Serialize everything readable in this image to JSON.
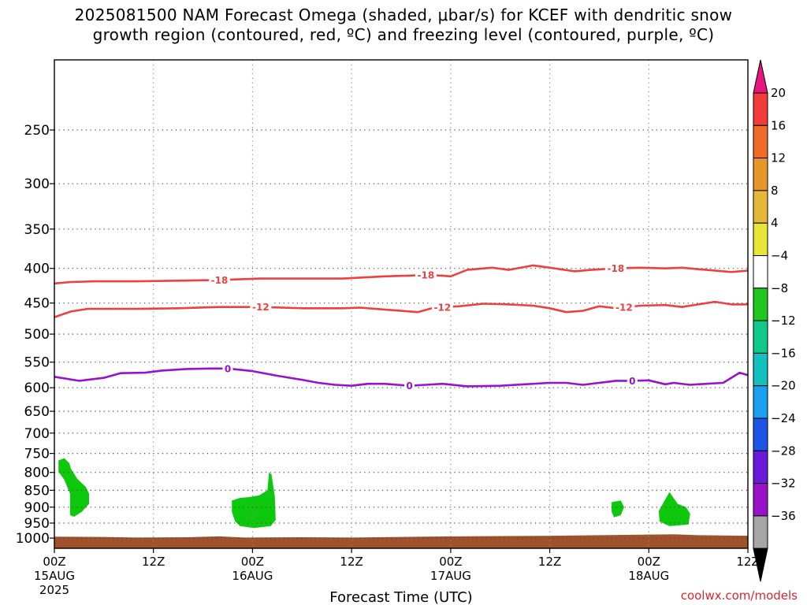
{
  "title": {
    "line1": "2025081500 NAM Forecast Omega (shaded, μbar/s) for KCEF with dendritic snow",
    "line2": "growth region (contoured, red, ºC) and freezing level (contoured, purple, ºC)"
  },
  "credit": "coolwx.com/models",
  "chart_data": {
    "type": "contour",
    "xlabel": "Forecast Time (UTC)",
    "x_axis": {
      "unit": "hours since 2025-08-15 00Z",
      "range": [
        0,
        84
      ],
      "ticks": [
        {
          "h": 0,
          "label": "00Z",
          "sub1": "15AUG",
          "sub2": "2025"
        },
        {
          "h": 12,
          "label": "12Z"
        },
        {
          "h": 24,
          "label": "00Z",
          "sub1": "16AUG"
        },
        {
          "h": 36,
          "label": "12Z"
        },
        {
          "h": 48,
          "label": "00Z",
          "sub1": "17AUG"
        },
        {
          "h": 60,
          "label": "12Z"
        },
        {
          "h": 72,
          "label": "00Z",
          "sub1": "18AUG"
        },
        {
          "h": 84,
          "label": "12Z"
        }
      ]
    },
    "y_axis": {
      "unit": "hPa",
      "scale": "log",
      "reversed": true,
      "range": [
        1035,
        197
      ],
      "ticks": [
        250,
        300,
        350,
        400,
        450,
        500,
        550,
        600,
        650,
        700,
        750,
        800,
        850,
        900,
        950,
        1000
      ]
    },
    "grid": true,
    "colorbar": {
      "label_values": [
        "20",
        "16",
        "12",
        "8",
        "4",
        "−4",
        "−8",
        "−12",
        "−16",
        "−20",
        "−24",
        "−28",
        "−32",
        "−36"
      ],
      "colors": [
        "#e6157f",
        "#f23b3b",
        "#f06b2a",
        "#e8962a",
        "#e5b83a",
        "#e8e53a",
        "#ffffff",
        "#1ec81e",
        "#12c78a",
        "#13c1c1",
        "#1aa0f0",
        "#1f55e6",
        "#6a1ad9",
        "#9a12c8",
        "#a6a6a6",
        "#000000"
      ]
    },
    "series": [
      {
        "name": "-18",
        "color": "#ee4040",
        "label_positions": [
          20,
          45,
          68
        ],
        "points": [
          [
            0,
            421
          ],
          [
            2,
            419
          ],
          [
            5,
            418
          ],
          [
            10,
            418
          ],
          [
            15,
            417
          ],
          [
            20,
            416
          ],
          [
            25,
            414
          ],
          [
            30,
            414
          ],
          [
            35,
            414
          ],
          [
            40,
            411
          ],
          [
            43,
            410
          ],
          [
            45,
            409
          ],
          [
            47,
            410
          ],
          [
            48,
            411
          ],
          [
            50,
            402
          ],
          [
            53,
            399
          ],
          [
            55,
            402
          ],
          [
            58,
            396
          ],
          [
            60,
            399
          ],
          [
            63,
            404
          ],
          [
            65,
            402
          ],
          [
            68,
            400
          ],
          [
            71,
            399
          ],
          [
            74,
            400
          ],
          [
            76,
            399
          ],
          [
            79,
            402
          ],
          [
            82,
            405
          ],
          [
            84,
            403
          ]
        ]
      },
      {
        "name": "-12",
        "color": "#ee4040",
        "label_positions": [
          25,
          47,
          69
        ],
        "points": [
          [
            0,
            472
          ],
          [
            2,
            463
          ],
          [
            4,
            459
          ],
          [
            10,
            459
          ],
          [
            15,
            458
          ],
          [
            20,
            456
          ],
          [
            25,
            456
          ],
          [
            30,
            458
          ],
          [
            35,
            458
          ],
          [
            37,
            457
          ],
          [
            40,
            460
          ],
          [
            42,
            462
          ],
          [
            44,
            464
          ],
          [
            46,
            457
          ],
          [
            49,
            455
          ],
          [
            52,
            451
          ],
          [
            55,
            452
          ],
          [
            58,
            454
          ],
          [
            60,
            458
          ],
          [
            62,
            464
          ],
          [
            64,
            462
          ],
          [
            66,
            455
          ],
          [
            68,
            458
          ],
          [
            71,
            454
          ],
          [
            74,
            453
          ],
          [
            76,
            456
          ],
          [
            78,
            452
          ],
          [
            80,
            448
          ],
          [
            82,
            452
          ],
          [
            84,
            452
          ]
        ]
      },
      {
        "name": "0",
        "color": "#9911cc",
        "label_positions": [
          21,
          43,
          70
        ],
        "points": [
          [
            0,
            578
          ],
          [
            3,
            586
          ],
          [
            6,
            580
          ],
          [
            8,
            571
          ],
          [
            11,
            570
          ],
          [
            13,
            566
          ],
          [
            16,
            563
          ],
          [
            19,
            562
          ],
          [
            21,
            562
          ],
          [
            24,
            567
          ],
          [
            27,
            576
          ],
          [
            30,
            584
          ],
          [
            32,
            590
          ],
          [
            34,
            594
          ],
          [
            36,
            596
          ],
          [
            38,
            592
          ],
          [
            40,
            592
          ],
          [
            43,
            596
          ],
          [
            45,
            594
          ],
          [
            47,
            592
          ],
          [
            50,
            597
          ],
          [
            54,
            596
          ],
          [
            57,
            593
          ],
          [
            60,
            590
          ],
          [
            62,
            590
          ],
          [
            64,
            594
          ],
          [
            66,
            590
          ],
          [
            68,
            586
          ],
          [
            70,
            586
          ],
          [
            72,
            585
          ],
          [
            74,
            593
          ],
          [
            75,
            590
          ],
          [
            77,
            594
          ],
          [
            79,
            592
          ],
          [
            81,
            590
          ],
          [
            82,
            580
          ],
          [
            83,
            570
          ],
          [
            84,
            575
          ]
        ]
      }
    ],
    "shaded_regions": [
      {
        "label": "-4",
        "color": "#0ec80e",
        "points": [
          [
            0.5,
            768
          ],
          [
            1.2,
            762
          ],
          [
            1.8,
            775
          ],
          [
            2.0,
            790
          ],
          [
            2.8,
            818
          ],
          [
            3.8,
            840
          ],
          [
            4.2,
            860
          ],
          [
            4.2,
            890
          ],
          [
            3.3,
            915
          ],
          [
            2.4,
            930
          ],
          [
            1.9,
            925
          ],
          [
            1.9,
            860
          ],
          [
            1.2,
            820
          ],
          [
            0.5,
            798
          ]
        ]
      },
      {
        "label": "-4",
        "color": "#0ec80e",
        "points": [
          [
            21.5,
            880
          ],
          [
            22.5,
            872
          ],
          [
            23.5,
            870
          ],
          [
            24.8,
            865
          ],
          [
            25.8,
            850
          ],
          [
            26.0,
            800
          ],
          [
            26.3,
            805
          ],
          [
            26.7,
            868
          ],
          [
            26.8,
            940
          ],
          [
            26.2,
            960
          ],
          [
            24.2,
            966
          ],
          [
            22.5,
            960
          ],
          [
            21.9,
            945
          ],
          [
            21.5,
            915
          ]
        ]
      },
      {
        "label": "-4",
        "color": "#0ec80e",
        "points": [
          [
            67.5,
            885
          ],
          [
            68.6,
            880
          ],
          [
            69.0,
            900
          ],
          [
            68.6,
            925
          ],
          [
            67.8,
            932
          ],
          [
            67.5,
            915
          ]
        ]
      },
      {
        "label": "-4",
        "color": "#0ec80e",
        "points": [
          [
            73.2,
            912
          ],
          [
            73.8,
            885
          ],
          [
            74.5,
            855
          ],
          [
            75.5,
            890
          ],
          [
            76.5,
            900
          ],
          [
            77.0,
            920
          ],
          [
            76.8,
            955
          ],
          [
            74.5,
            960
          ],
          [
            73.3,
            945
          ]
        ]
      }
    ],
    "surface_fill": {
      "color": "#a0522d",
      "points": [
        [
          0,
          995
        ],
        [
          6,
          996
        ],
        [
          10,
          998
        ],
        [
          16,
          997
        ],
        [
          20,
          994
        ],
        [
          23,
          998
        ],
        [
          30,
          997
        ],
        [
          36,
          998
        ],
        [
          42,
          996
        ],
        [
          48,
          994
        ],
        [
          54,
          993
        ],
        [
          60,
          992
        ],
        [
          66,
          990
        ],
        [
          72,
          988
        ],
        [
          75,
          987
        ],
        [
          78,
          990
        ],
        [
          84,
          992
        ]
      ]
    }
  }
}
